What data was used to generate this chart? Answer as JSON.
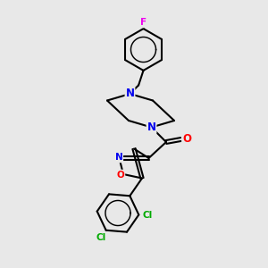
{
  "background_color": "#e8e8e8",
  "atom_colors": {
    "N": "#0000ee",
    "O": "#ff0000",
    "Cl": "#00aa00",
    "F": "#ee00ee",
    "C": "#000000"
  },
  "bond_color": "#000000",
  "bond_width": 1.5
}
